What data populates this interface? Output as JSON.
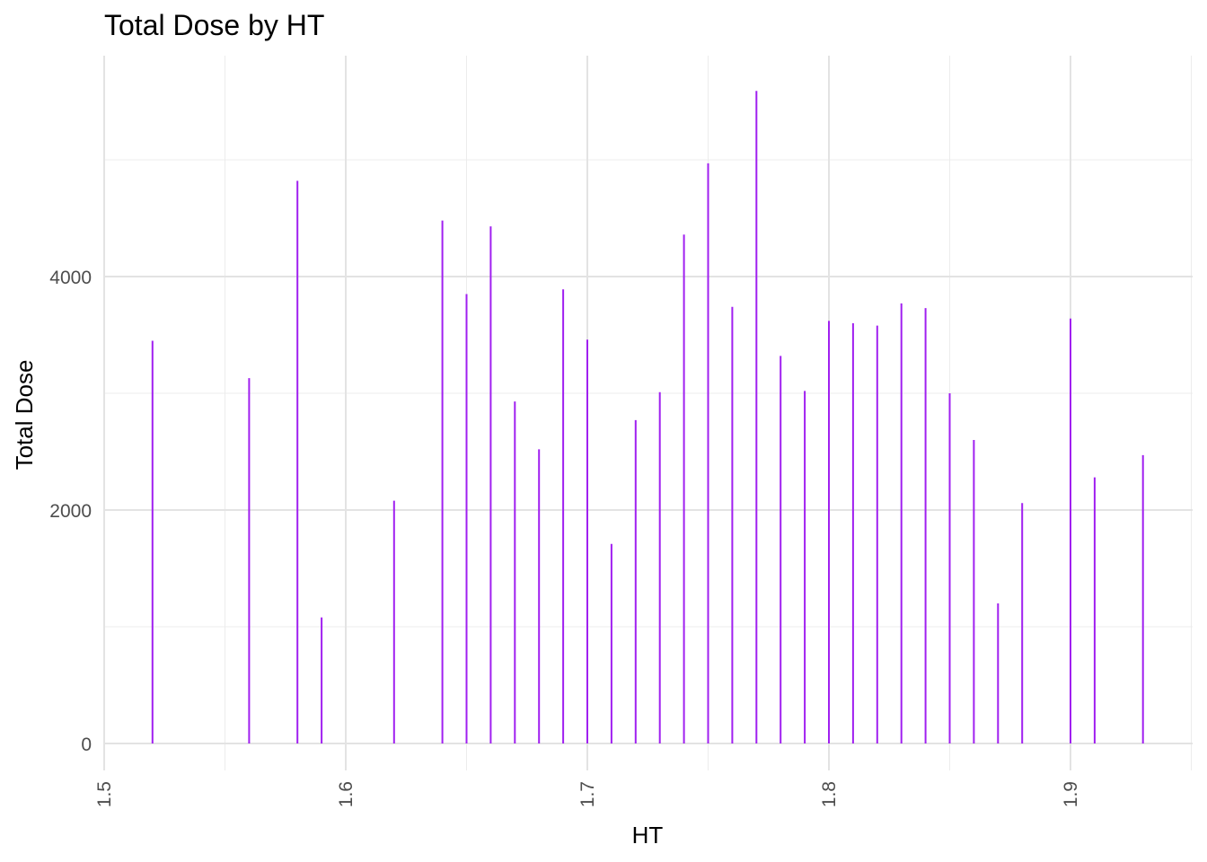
{
  "chart_data": {
    "type": "bar",
    "title": "Total Dose by HT",
    "xlabel": "HT",
    "ylabel": "Total Dose",
    "xlim": [
      1.5,
      1.95
    ],
    "ylim": [
      0,
      5600
    ],
    "x_ticks": [
      1.5,
      1.6,
      1.7,
      1.8,
      1.9
    ],
    "x_tick_labels": [
      "1.5",
      "1.6",
      "1.7",
      "1.8",
      "1.9"
    ],
    "y_ticks": [
      0,
      2000,
      4000
    ],
    "y_tick_labels": [
      "0",
      "2000",
      "4000"
    ],
    "grid": true,
    "bar_color": "#a020f0",
    "points": [
      {
        "x": 1.52,
        "y": 3450
      },
      {
        "x": 1.56,
        "y": 3130
      },
      {
        "x": 1.58,
        "y": 4820
      },
      {
        "x": 1.59,
        "y": 1080
      },
      {
        "x": 1.62,
        "y": 2080
      },
      {
        "x": 1.64,
        "y": 4480
      },
      {
        "x": 1.65,
        "y": 3850
      },
      {
        "x": 1.66,
        "y": 4430
      },
      {
        "x": 1.67,
        "y": 2930
      },
      {
        "x": 1.68,
        "y": 2520
      },
      {
        "x": 1.69,
        "y": 3890
      },
      {
        "x": 1.7,
        "y": 3460
      },
      {
        "x": 1.71,
        "y": 1710
      },
      {
        "x": 1.72,
        "y": 2770
      },
      {
        "x": 1.73,
        "y": 3010
      },
      {
        "x": 1.74,
        "y": 4360
      },
      {
        "x": 1.75,
        "y": 4970
      },
      {
        "x": 1.76,
        "y": 3740
      },
      {
        "x": 1.77,
        "y": 5590
      },
      {
        "x": 1.78,
        "y": 3320
      },
      {
        "x": 1.79,
        "y": 3020
      },
      {
        "x": 1.8,
        "y": 3620
      },
      {
        "x": 1.81,
        "y": 3600
      },
      {
        "x": 1.82,
        "y": 3580
      },
      {
        "x": 1.83,
        "y": 3770
      },
      {
        "x": 1.84,
        "y": 3730
      },
      {
        "x": 1.85,
        "y": 3000
      },
      {
        "x": 1.86,
        "y": 2600
      },
      {
        "x": 1.87,
        "y": 1200
      },
      {
        "x": 1.88,
        "y": 2060
      },
      {
        "x": 1.9,
        "y": 3640
      },
      {
        "x": 1.91,
        "y": 2280
      },
      {
        "x": 1.93,
        "y": 2470
      }
    ]
  }
}
